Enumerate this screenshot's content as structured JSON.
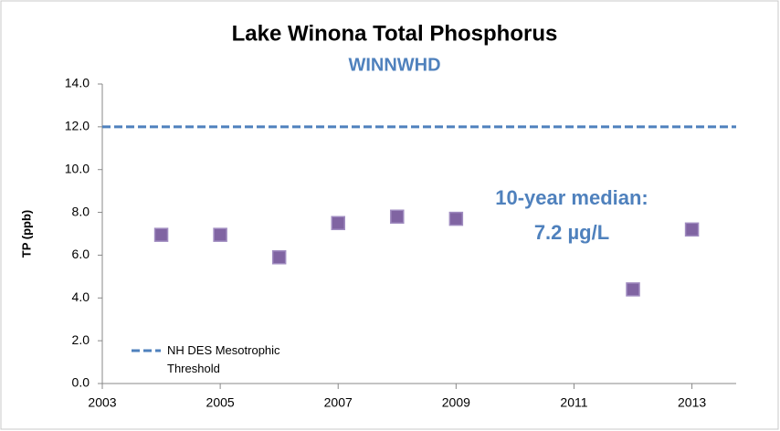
{
  "chart_data": {
    "type": "scatter",
    "title": "Lake Winona Total Phosphorus",
    "subtitle": "WINNWHD",
    "y_label": "TP (ppb)",
    "x": [
      2004,
      2005,
      2006,
      2007,
      2008,
      2009,
      2012,
      2013
    ],
    "values": [
      6.95,
      6.95,
      5.9,
      7.5,
      7.8,
      7.7,
      4.4,
      7.2
    ],
    "color": "#8064a2",
    "threshold": {
      "name": "NH DES Mesotrophic Threshold",
      "value": 12,
      "color": "#4f81bd"
    },
    "annotations": [
      "10-year median:",
      "7.2 µg/L"
    ],
    "xlim": [
      2003,
      2013.75
    ],
    "xticks": [
      2003,
      2005,
      2007,
      2009,
      2011,
      2013
    ],
    "ylim": [
      0,
      14
    ],
    "yticks": [
      {
        "value": 0,
        "label": "0.0"
      },
      {
        "value": 2,
        "label": "2.0"
      },
      {
        "value": 4,
        "label": "4.0"
      },
      {
        "value": 6,
        "label": "6.0"
      },
      {
        "value": 8,
        "label": "8.0"
      },
      {
        "value": 10,
        "label": "10.0"
      },
      {
        "value": 12,
        "label": "12.0"
      },
      {
        "value": 14,
        "label": "14.0"
      }
    ],
    "grid": false,
    "legend": "lower left"
  }
}
